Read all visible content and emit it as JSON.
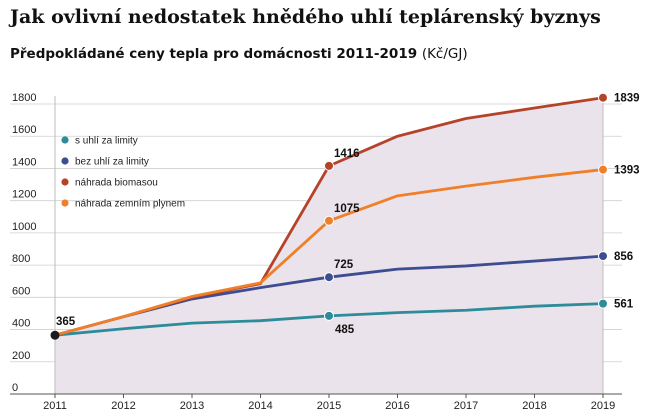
{
  "title": "Jak ovlivní nedostatek hnědého uhlí teplárenský byznys",
  "subtitle": "Předpokládané ceny tepla pro domácnosti 2011-2019",
  "unit": "(Kč/GJ)",
  "colors": {
    "background_fill": "#ebe3eb",
    "grid": "#cfcfcf",
    "start_point": "#1a1a1a"
  },
  "chart_data": {
    "type": "line",
    "x": [
      "2011",
      "2012",
      "2013",
      "2014",
      "2015",
      "2016",
      "2017",
      "2018",
      "2019"
    ],
    "ylim": [
      0,
      1800
    ],
    "yticks": [
      0,
      200,
      400,
      600,
      800,
      1000,
      1200,
      1400,
      1600,
      1800
    ],
    "grid": "horizontal",
    "legend_position": "top-left",
    "start_label": "365",
    "series": [
      {
        "name": "s uhlí za limity",
        "color": "#2e8b9a",
        "values": [
          365,
          405,
          440,
          455,
          485,
          505,
          520,
          545,
          561
        ],
        "markers": [
          4,
          8
        ],
        "labels": [
          {
            "index": 4,
            "text": "485",
            "pos": "below"
          },
          {
            "index": 8,
            "text": "561",
            "pos": "right"
          }
        ]
      },
      {
        "name": "bez uhlí za limity",
        "color": "#3d4d91",
        "values": [
          365,
          480,
          590,
          660,
          725,
          775,
          795,
          825,
          856
        ],
        "markers": [
          4,
          8
        ],
        "labels": [
          {
            "index": 4,
            "text": "725",
            "pos": "above"
          },
          {
            "index": 8,
            "text": "856",
            "pos": "right"
          }
        ]
      },
      {
        "name": "náhrada biomasou",
        "color": "#b5432a",
        "values": [
          365,
          480,
          600,
          685,
          1416,
          1600,
          1710,
          1775,
          1839
        ],
        "markers": [
          4,
          8
        ],
        "labels": [
          {
            "index": 4,
            "text": "1416",
            "pos": "above"
          },
          {
            "index": 8,
            "text": "1839",
            "pos": "right"
          }
        ]
      },
      {
        "name": "náhrada zemním plynem",
        "color": "#f07f2a",
        "values": [
          365,
          480,
          605,
          690,
          1075,
          1230,
          1290,
          1345,
          1393
        ],
        "markers": [
          4,
          8
        ],
        "labels": [
          {
            "index": 4,
            "text": "1075",
            "pos": "above"
          },
          {
            "index": 8,
            "text": "1393",
            "pos": "right"
          }
        ]
      }
    ]
  }
}
